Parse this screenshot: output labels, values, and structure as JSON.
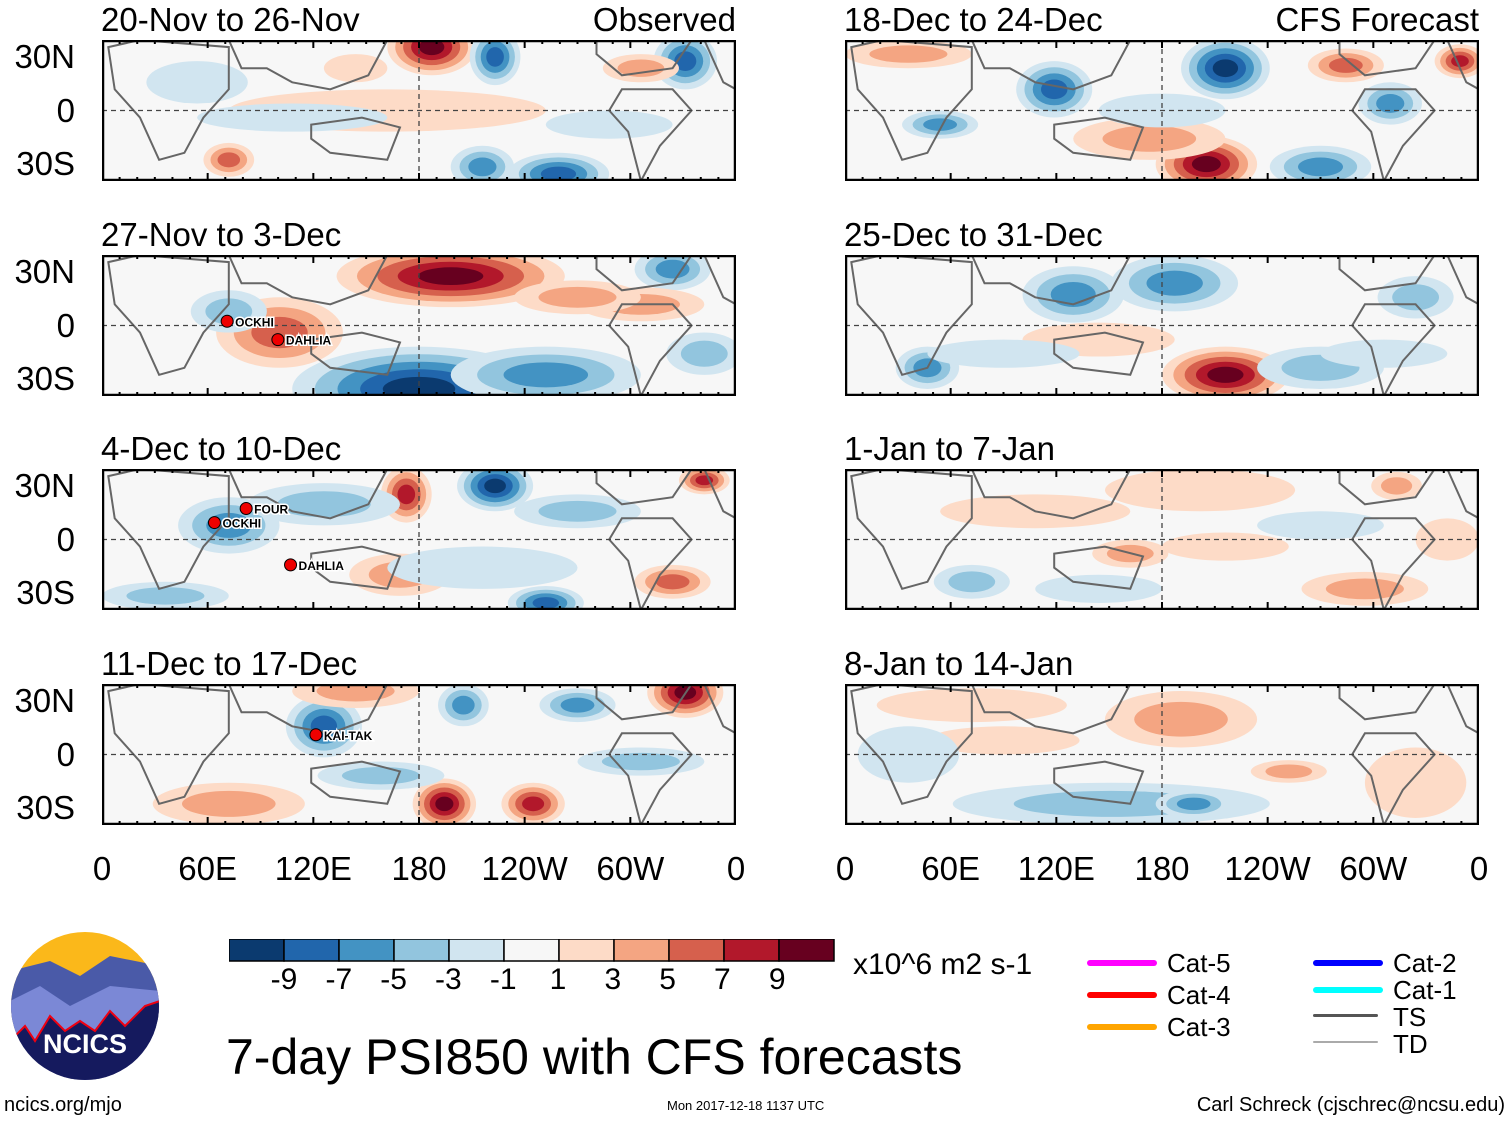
{
  "panels_left_header": "Observed",
  "panels_right_header": "CFS Forecast",
  "chart_data": {
    "type": "heatmap",
    "title": "7-day PSI850 with CFS forecasts",
    "units": "x10^6 m2 s-1",
    "y_ticks": [
      "30N",
      "0",
      "30S"
    ],
    "x_ticks": [
      "0",
      "60E",
      "120E",
      "180",
      "120W",
      "60W",
      "0"
    ],
    "panels": [
      {
        "title": "20-Nov to 26-Nov",
        "kind": "Observed",
        "storms": []
      },
      {
        "title": "27-Nov to 3-Dec",
        "kind": "Observed",
        "storms": [
          "OCKHI",
          "DAHLIA"
        ]
      },
      {
        "title": "4-Dec to 10-Dec",
        "kind": "Observed",
        "storms": [
          "OCKHI",
          "FOUR",
          "DAHLIA"
        ]
      },
      {
        "title": "11-Dec to 17-Dec",
        "kind": "Observed",
        "storms": [
          "KAI-TAK"
        ]
      },
      {
        "title": "18-Dec to 24-Dec",
        "kind": "CFS Forecast",
        "storms": []
      },
      {
        "title": "25-Dec to 31-Dec",
        "kind": "CFS Forecast",
        "storms": []
      },
      {
        "title": "1-Jan to 7-Jan",
        "kind": "CFS Forecast",
        "storms": []
      },
      {
        "title": "8-Jan to 14-Jan",
        "kind": "CFS Forecast",
        "storms": []
      }
    ],
    "colorbar": {
      "labels": [
        "-9",
        "-7",
        "-5",
        "-3",
        "-1",
        "1",
        "3",
        "5",
        "7",
        "9"
      ],
      "colors": [
        "#0b3a6f",
        "#2166ac",
        "#4393c3",
        "#92c5de",
        "#d1e5f0",
        "#f7f7f7",
        "#fddbc7",
        "#f4a582",
        "#d6604d",
        "#b2182b",
        "#67001f"
      ]
    }
  },
  "legend": [
    {
      "label": "Cat-5",
      "color": "#ff00ff"
    },
    {
      "label": "Cat-4",
      "color": "#ff0000"
    },
    {
      "label": "Cat-3",
      "color": "#ffa500"
    },
    {
      "label": "Cat-2",
      "color": "#0000ff"
    },
    {
      "label": "Cat-1",
      "color": "#00ffff"
    },
    {
      "label": "TS",
      "color": "#555555"
    },
    {
      "label": "TD",
      "color": "#aaaaaa"
    }
  ],
  "logo_text": "NCICS",
  "footer": {
    "left": "ncics.org/mjo",
    "center": "Mon 2017-12-18 1137 UTC",
    "right": "Carl Schreck (cjschrec@ncsu.edu)"
  }
}
